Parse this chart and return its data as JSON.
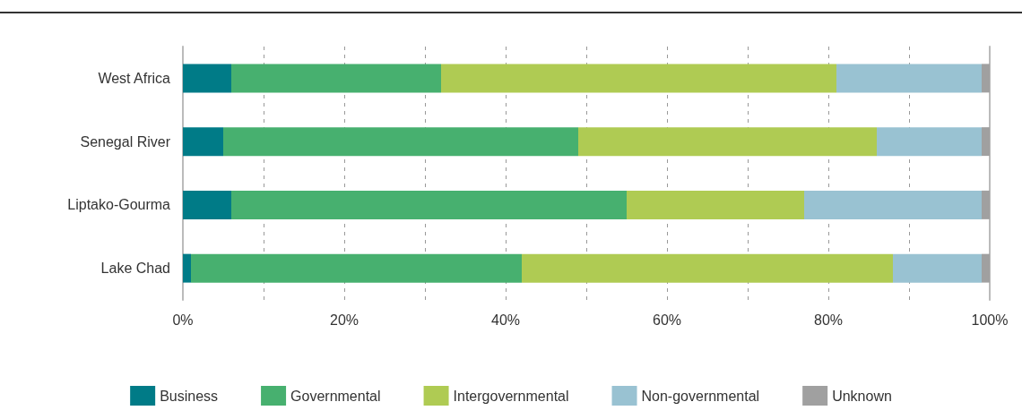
{
  "chart_data": {
    "type": "bar",
    "orientation": "horizontal",
    "stacked": true,
    "categories": [
      "West Africa",
      "Senegal River",
      "Liptako-Gourma",
      "Lake Chad"
    ],
    "series": [
      {
        "name": "Business",
        "color": "#007b87",
        "values": [
          6,
          5,
          6,
          1
        ]
      },
      {
        "name": "Governmental",
        "color": "#47b06f",
        "values": [
          26,
          44,
          49,
          41
        ]
      },
      {
        "name": "Intergovernmental",
        "color": "#afcb53",
        "values": [
          49,
          37,
          22,
          46
        ]
      },
      {
        "name": "Non-governmental",
        "color": "#99c2d2",
        "values": [
          18,
          13,
          22,
          11
        ]
      },
      {
        "name": "Unknown",
        "color": "#a0a0a0",
        "values": [
          1,
          1,
          1,
          1
        ]
      }
    ],
    "xlim": [
      0,
      100
    ],
    "xticks": [
      {
        "value": 0,
        "label": "0%"
      },
      {
        "value": 10,
        "label": null
      },
      {
        "value": 20,
        "label": "20%"
      },
      {
        "value": 30,
        "label": null
      },
      {
        "value": 40,
        "label": "40%"
      },
      {
        "value": 50,
        "label": null
      },
      {
        "value": 60,
        "label": "60%"
      },
      {
        "value": 70,
        "label": null
      },
      {
        "value": 80,
        "label": "80%"
      },
      {
        "value": 90,
        "label": null
      },
      {
        "value": 100,
        "label": "100%"
      }
    ],
    "grid": "x",
    "legend": "bottom"
  }
}
